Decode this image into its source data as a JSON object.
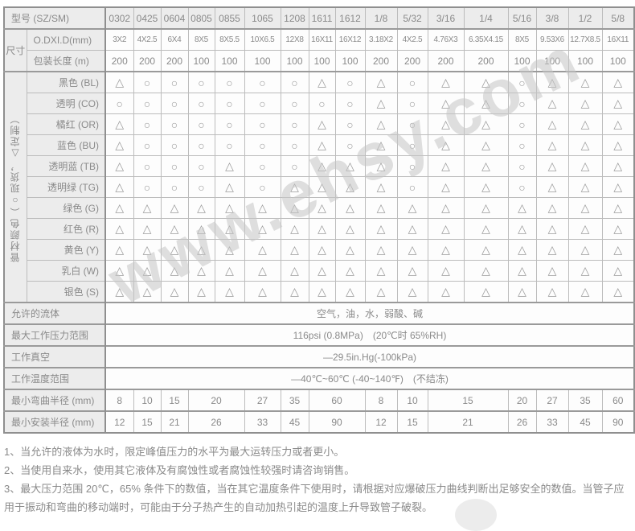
{
  "watermark": "www.ehsy.com",
  "colors": {
    "text": "#8a8a8a",
    "label_background": "#ececec",
    "grid_border": "#bcbcbc",
    "section_border": "#8f8f8f",
    "watermark": "#c6c6c6"
  },
  "table": {
    "model_row": {
      "label": "型号 (SZ/SM)",
      "models": [
        "0302",
        "0425",
        "0604",
        "0805",
        "0855",
        "1065",
        "1208",
        "1611",
        "1612",
        "1/8",
        "5/32",
        "3/16",
        "1/4",
        "5/16",
        "3/8",
        "1/2",
        "5/8"
      ]
    },
    "size_group": {
      "label": "尺寸",
      "dim_row": {
        "label": "O.DXI.D(mm)",
        "values": [
          "3X2",
          "4X2.5",
          "6X4",
          "8X5",
          "8X5.5",
          "10X6.5",
          "12X8",
          "16X11",
          "16X12",
          "3.18X2",
          "4X2.5",
          "4.76X3",
          "6.35X4.15",
          "8X5",
          "9.53X6",
          "12.7X8.5",
          "16X11"
        ]
      },
      "pack_row": {
        "label": "包装长度 (m)",
        "values": [
          "200",
          "200",
          "200",
          "100",
          "100",
          "100",
          "100",
          "100",
          "100",
          "200",
          "200",
          "200",
          "200",
          "100",
          "100",
          "100",
          "100"
        ]
      }
    },
    "color_group": {
      "label": "管材颜色（○现货，△定制）",
      "legend": {
        "stock_mark": "○",
        "custom_mark": "△"
      },
      "rows": [
        {
          "label": "黑色 (BL)",
          "marks": [
            "△",
            "○",
            "○",
            "○",
            "○",
            "○",
            "○",
            "△",
            "○",
            "△",
            "○",
            "△",
            "△",
            "○",
            "△",
            "△",
            "△"
          ]
        },
        {
          "label": "透明 (CO)",
          "marks": [
            "○",
            "○",
            "○",
            "○",
            "○",
            "○",
            "○",
            "○",
            "○",
            "△",
            "○",
            "△",
            "△",
            "○",
            "△",
            "△",
            "△"
          ]
        },
        {
          "label": "橘红 (OR)",
          "marks": [
            "△",
            "○",
            "○",
            "○",
            "○",
            "○",
            "○",
            "△",
            "○",
            "△",
            "○",
            "△",
            "△",
            "○",
            "△",
            "△",
            "△"
          ]
        },
        {
          "label": "蓝色 (BU)",
          "marks": [
            "△",
            "○",
            "○",
            "○",
            "○",
            "○",
            "○",
            "△",
            "○",
            "△",
            "○",
            "△",
            "△",
            "○",
            "△",
            "△",
            "△"
          ]
        },
        {
          "label": "透明蓝 (TB)",
          "marks": [
            "△",
            "○",
            "○",
            "○",
            "△",
            "○",
            "○",
            "△",
            "△",
            "△",
            "○",
            "△",
            "△",
            "○",
            "△",
            "△",
            "△"
          ]
        },
        {
          "label": "透明绿 (TG)",
          "marks": [
            "△",
            "○",
            "○",
            "○",
            "△",
            "○",
            "△",
            "△",
            "△",
            "△",
            "○",
            "△",
            "△",
            "○",
            "△",
            "△",
            "△"
          ]
        },
        {
          "label": "绿色 (G)",
          "marks": [
            "△",
            "△",
            "△",
            "△",
            "△",
            "△",
            "△",
            "△",
            "△",
            "△",
            "△",
            "△",
            "△",
            "△",
            "△",
            "△",
            "△"
          ]
        },
        {
          "label": "红色 (R)",
          "marks": [
            "△",
            "△",
            "△",
            "△",
            "△",
            "△",
            "△",
            "△",
            "△",
            "△",
            "△",
            "△",
            "△",
            "△",
            "△",
            "△",
            "△"
          ]
        },
        {
          "label": "黄色 (Y)",
          "marks": [
            "△",
            "△",
            "△",
            "△",
            "△",
            "△",
            "△",
            "△",
            "△",
            "△",
            "△",
            "△",
            "△",
            "△",
            "△",
            "△",
            "△"
          ]
        },
        {
          "label": "乳白 (W)",
          "marks": [
            "△",
            "△",
            "△",
            "△",
            "△",
            "△",
            "△",
            "△",
            "△",
            "△",
            "△",
            "△",
            "△",
            "△",
            "△",
            "△",
            "△"
          ]
        },
        {
          "label": "银色 (S)",
          "marks": [
            "△",
            "△",
            "△",
            "△",
            "△",
            "△",
            "△",
            "△",
            "△",
            "△",
            "△",
            "△",
            "△",
            "△",
            "△",
            "△",
            "△"
          ]
        }
      ]
    },
    "spec_rows": [
      {
        "label": "允许的流体",
        "value": "空气，油，水，弱酸、碱"
      },
      {
        "label": "最大工作压力范围",
        "value": "116psi (0.8MPa)　(20℃时 65%RH)"
      },
      {
        "label": "工作真空",
        "value": "—29.5in.Hg(-100kPa)"
      },
      {
        "label": "工作温度范围",
        "value": "—40℃~60℃ (-40~140℉)　(不结冻)"
      }
    ],
    "radius_rows": [
      {
        "label": "最小弯曲半径 (mm)",
        "values": [
          "8",
          "10",
          "15",
          "20",
          "27",
          "35",
          "60",
          "8",
          "10",
          "15",
          "20",
          "27",
          "35",
          "60"
        ],
        "spans": [
          1,
          1,
          1,
          2,
          1,
          1,
          2,
          1,
          1,
          2,
          1,
          1,
          1,
          1
        ]
      },
      {
        "label": "最小安装半径 (mm)",
        "values": [
          "12",
          "15",
          "21",
          "26",
          "33",
          "45",
          "90",
          "12",
          "15",
          "21",
          "26",
          "33",
          "45",
          "90"
        ],
        "spans": [
          1,
          1,
          1,
          2,
          1,
          1,
          2,
          1,
          1,
          2,
          1,
          1,
          1,
          1
        ]
      }
    ]
  },
  "notes": [
    "1、当允许的液体为水时，限定峰值压力的水平为最大运转压力或者更小。",
    "2、当使用自来水，使用其它液体及有腐蚀性或者腐蚀性较强时请咨询销售。",
    "3、最大压力范围 20℃，65% 条件下的数值，当在其它温度条件下使用时，请根据对应爆破压力曲线判断出足够安全的数值。当管子应用于振动和弯曲的移动端时，可能由于分子热产生的自动加热引起的温度上升导致管子破裂。"
  ]
}
